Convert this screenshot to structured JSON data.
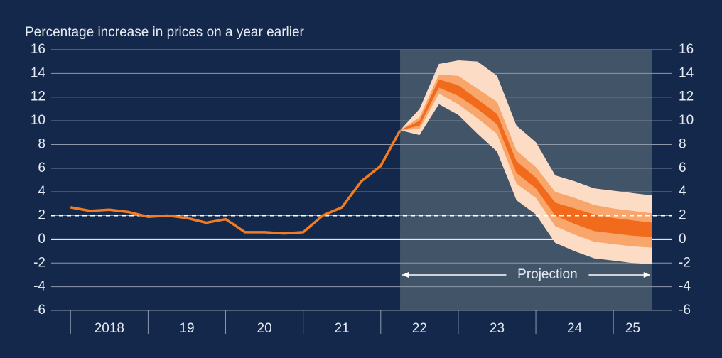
{
  "chart_data": {
    "type": "fan",
    "title": "Percentage increase in prices on a year earlier",
    "annotation": "Projection",
    "projection_range": [
      2022.25,
      2025.5
    ],
    "xlim": [
      2017.75,
      2025.75
    ],
    "xticks": [
      {
        "value": 2018.5,
        "label": "2018"
      },
      {
        "value": 2019.5,
        "label": "19"
      },
      {
        "value": 2020.5,
        "label": "20"
      },
      {
        "value": 2021.5,
        "label": "21"
      },
      {
        "value": 2022.5,
        "label": "22"
      },
      {
        "value": 2023.5,
        "label": "23"
      },
      {
        "value": 2024.5,
        "label": "24"
      },
      {
        "value": 2025.25,
        "label": "25"
      }
    ],
    "xtick_marks": [
      2018,
      2019,
      2020,
      2021,
      2022,
      2023,
      2024,
      2025
    ],
    "ylim": [
      -6,
      16
    ],
    "yticks": [
      -6,
      -4,
      -2,
      0,
      2,
      4,
      6,
      8,
      10,
      12,
      14,
      16
    ],
    "grid": true,
    "reference_line": 2,
    "line": {
      "color": "#f47b20",
      "x": [
        2018,
        2018.25,
        2018.5,
        2018.75,
        2019,
        2019.25,
        2019.5,
        2019.75,
        2020,
        2020.25,
        2020.5,
        2020.75,
        2021,
        2021.25,
        2021.5,
        2021.75,
        2022,
        2022.25
      ],
      "values": [
        2.7,
        2.4,
        2.5,
        2.3,
        1.9,
        2.0,
        1.8,
        1.4,
        1.7,
        0.6,
        0.6,
        0.5,
        0.6,
        2.0,
        2.7,
        4.9,
        6.2,
        9.2
      ]
    },
    "fan_x": [
      2022.25,
      2022.5,
      2022.75,
      2023,
      2023.25,
      2023.5,
      2023.75,
      2024,
      2024.25,
      2024.5,
      2024.75,
      2025,
      2025.25,
      2025.5
    ],
    "bands": [
      {
        "color": "#fddcc5",
        "upper": [
          9.2,
          11.0,
          14.8,
          15.1,
          15.0,
          13.8,
          9.6,
          8.2,
          5.4,
          4.9,
          4.3,
          4.1,
          3.9,
          3.7
        ],
        "lower": [
          9.2,
          8.8,
          11.4,
          10.5,
          8.9,
          7.4,
          3.3,
          2.1,
          -0.3,
          -1.0,
          -1.6,
          -1.8,
          -2.0,
          -2.1
        ]
      },
      {
        "color": "#f9a66c",
        "upper": [
          9.2,
          10.3,
          13.9,
          13.8,
          12.7,
          11.6,
          7.5,
          6.1,
          4.0,
          3.5,
          2.9,
          2.6,
          2.4,
          2.2
        ],
        "lower": [
          9.2,
          9.3,
          12.3,
          11.4,
          10.2,
          8.9,
          4.7,
          3.5,
          1.1,
          0.4,
          -0.2,
          -0.4,
          -0.6,
          -0.7
        ]
      },
      {
        "color": "#f26a1b",
        "upper": [
          9.2,
          10.0,
          13.5,
          13.0,
          11.8,
          10.6,
          6.6,
          5.2,
          3.1,
          2.6,
          2.1,
          1.8,
          1.6,
          1.4
        ],
        "lower": [
          9.2,
          9.6,
          12.8,
          12.1,
          11.0,
          9.7,
          5.6,
          4.3,
          2.0,
          1.3,
          0.7,
          0.5,
          0.3,
          0.2
        ]
      }
    ]
  }
}
